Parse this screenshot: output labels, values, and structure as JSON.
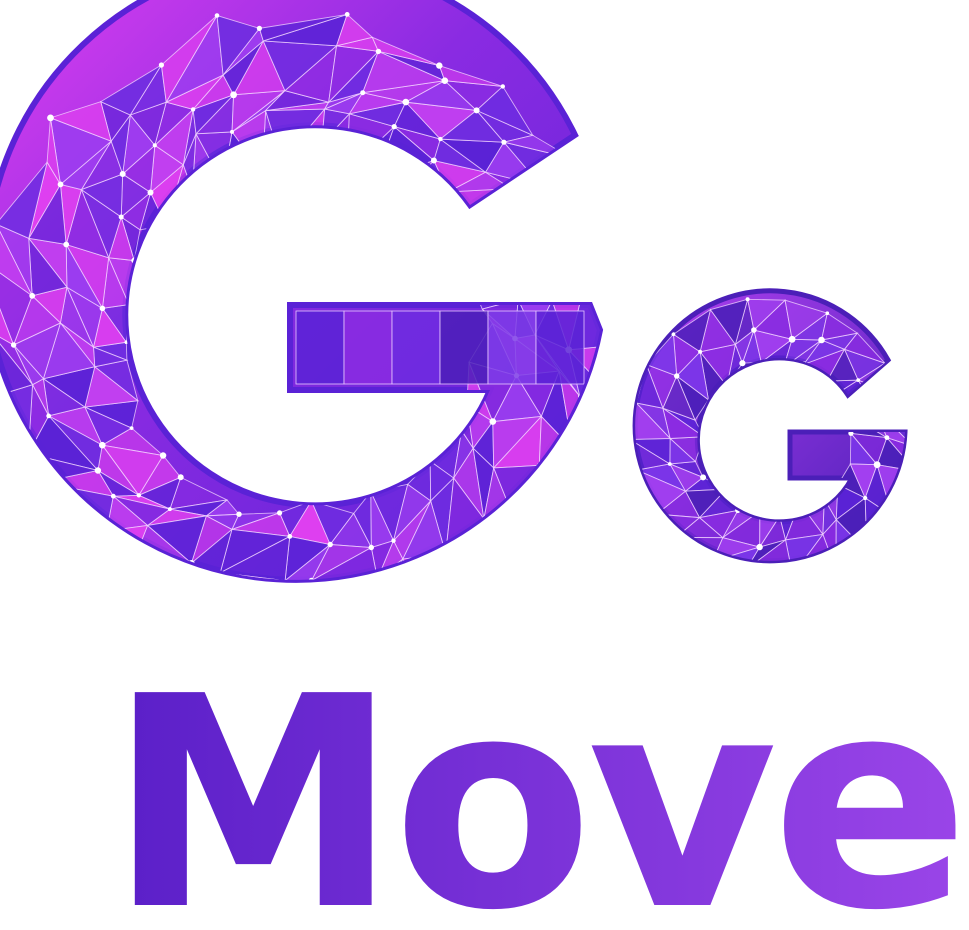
{
  "logo": {
    "large_letter": "G",
    "small_letter": "g",
    "wordmark": "Move",
    "colors": {
      "background": "#ffffff",
      "magenta": "#e040f0",
      "violet": "#8a2be2",
      "indigo": "#5a22d6",
      "deep_purple": "#4b1fb8",
      "wordmark_start": "#5a1fc8",
      "wordmark_end": "#9a45e8",
      "node": "#ffffff"
    }
  }
}
